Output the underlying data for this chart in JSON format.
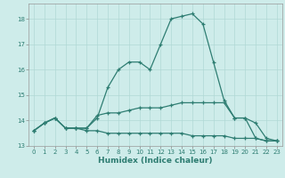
{
  "xlabel": "Humidex (Indice chaleur)",
  "xlim": [
    -0.5,
    23.5
  ],
  "ylim": [
    13,
    18.6
  ],
  "yticks": [
    13,
    14,
    15,
    16,
    17,
    18
  ],
  "xticks": [
    0,
    1,
    2,
    3,
    4,
    5,
    6,
    7,
    8,
    9,
    10,
    11,
    12,
    13,
    14,
    15,
    16,
    17,
    18,
    19,
    20,
    21,
    22,
    23
  ],
  "background_color": "#ceecea",
  "grid_color": "#b0d8d5",
  "line_color": "#2e7d72",
  "line1": [
    13.6,
    13.9,
    14.1,
    13.7,
    13.7,
    13.7,
    14.1,
    15.3,
    16.0,
    16.3,
    16.3,
    16.0,
    17.0,
    18.0,
    18.1,
    18.2,
    17.8,
    16.3,
    14.8,
    14.1,
    14.1,
    13.3,
    13.2,
    13.2
  ],
  "line2": [
    13.6,
    13.9,
    14.1,
    13.7,
    13.7,
    13.7,
    14.2,
    14.3,
    14.3,
    14.4,
    14.5,
    14.5,
    14.5,
    14.6,
    14.7,
    14.7,
    14.7,
    14.7,
    14.7,
    14.1,
    14.1,
    13.9,
    13.3,
    13.2
  ],
  "line3": [
    13.6,
    13.9,
    14.1,
    13.7,
    13.7,
    13.6,
    13.6,
    13.5,
    13.5,
    13.5,
    13.5,
    13.5,
    13.5,
    13.5,
    13.5,
    13.4,
    13.4,
    13.4,
    13.4,
    13.3,
    13.3,
    13.3,
    13.2,
    13.2
  ],
  "tick_label_fontsize": 5.0,
  "xlabel_fontsize": 6.5
}
